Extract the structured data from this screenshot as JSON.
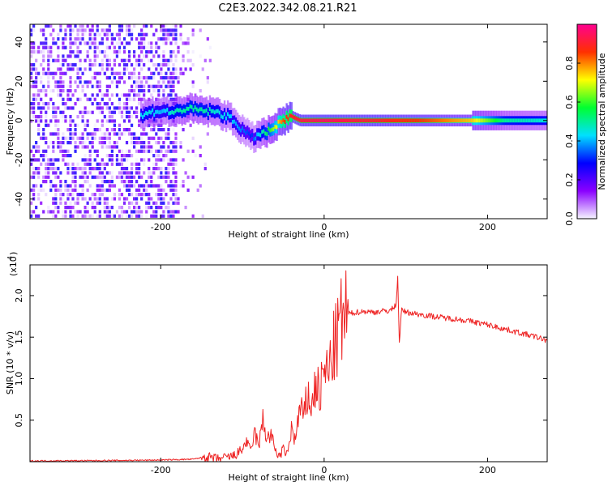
{
  "figure": {
    "title": "C2E3.2022.342.08.21.R21"
  },
  "chart_data": [
    {
      "type": "heatmap",
      "title": "C2E3.2022.342.08.21.R21",
      "xlabel": "Height of straight line (km)",
      "ylabel": "Frequency (Hz)",
      "xlim": [
        -360,
        273
      ],
      "ylim": [
        -50,
        49
      ],
      "x_ticks": [
        -200,
        0,
        200
      ],
      "x_tick_labels": [
        "-200",
        "0",
        "200"
      ],
      "y_ticks": [
        -40,
        -20,
        0,
        20,
        40
      ],
      "y_tick_labels": [
        "-40",
        "-20",
        "0",
        "20",
        "40"
      ],
      "colorbar": {
        "label": "Normalized spectral amplitude",
        "range": [
          0.0,
          1.0
        ],
        "ticks": [
          0.0,
          0.2,
          0.4,
          0.6,
          0.8
        ],
        "tick_labels": [
          "0.0",
          "0.2",
          "0.4",
          "0.6",
          "0.8"
        ],
        "colormap": [
          "#f6f6ff",
          "#8a00ff",
          "#0000ff",
          "#00e0ff",
          "#00ff30",
          "#ffff00",
          "#ff3000",
          "#ff0090"
        ]
      },
      "ridge": {
        "x": [
          -225,
          -215,
          -200,
          -185,
          -170,
          -150,
          -130,
          -115,
          -100,
          -90,
          -80,
          -70,
          -60,
          -50,
          -40,
          -30,
          0,
          60,
          120,
          180,
          220,
          273
        ],
        "freq": [
          2,
          4,
          5,
          4,
          6,
          5,
          4,
          1,
          -5,
          -9,
          -7,
          -6,
          -3,
          0,
          2,
          0,
          0,
          0,
          0,
          0,
          0,
          0
        ],
        "amplitude": [
          0.42,
          0.45,
          0.4,
          0.48,
          0.5,
          0.5,
          0.45,
          0.42,
          0.35,
          0.3,
          0.45,
          0.55,
          0.7,
          0.85,
          0.9,
          0.92,
          0.95,
          0.9,
          0.85,
          0.75,
          0.5,
          0.45
        ]
      },
      "noise_region_x": [
        -360,
        -140
      ],
      "grid": false
    },
    {
      "type": "line",
      "xlabel": "Height of straight line (km)",
      "ylabel": "SNR (10 * v/v)",
      "y_multiplier": "(x10",
      "y_multiplier_exp": "4",
      "y_multiplier_close": ")",
      "xlim": [
        -360,
        273
      ],
      "ylim": [
        0,
        23700
      ],
      "x_ticks": [
        -200,
        0,
        200
      ],
      "x_tick_labels": [
        "-200",
        "0",
        "200"
      ],
      "y_ticks": [
        5000,
        10000,
        15000,
        20000
      ],
      "y_tick_labels": [
        "0.5",
        "1.0",
        "1.5",
        "2.0"
      ],
      "line_color": "#ee2222",
      "series": [
        {
          "x": [
            -360,
            -300,
            -250,
            -200,
            -160,
            -145,
            -130,
            -110,
            -100,
            -95,
            -90,
            -85,
            -80,
            -75,
            -70,
            -65,
            -60,
            -55,
            -50,
            -45,
            -40,
            -35,
            -30,
            -25,
            -20,
            -15,
            -10,
            -5,
            0,
            5,
            10,
            15,
            20,
            25,
            30,
            40,
            50,
            60,
            70,
            80,
            85,
            88,
            90,
            92,
            95,
            100,
            120,
            140,
            160,
            180,
            200,
            220,
            240,
            260,
            273
          ],
          "y": [
            100,
            120,
            150,
            200,
            300,
            600,
            300,
            700,
            1500,
            2500,
            1200,
            3500,
            1800,
            5000,
            2800,
            3200,
            1500,
            600,
            1500,
            800,
            4000,
            2500,
            6500,
            5200,
            8200,
            6500,
            9500,
            8000,
            11000,
            10500,
            13000,
            14500,
            16500,
            17500,
            17800,
            18000,
            18100,
            18000,
            18100,
            18200,
            18500,
            19000,
            22200,
            14500,
            18300,
            18000,
            17700,
            17400,
            17200,
            16900,
            16500,
            16000,
            15500,
            15000,
            14600
          ]
        }
      ],
      "grid": false
    }
  ]
}
